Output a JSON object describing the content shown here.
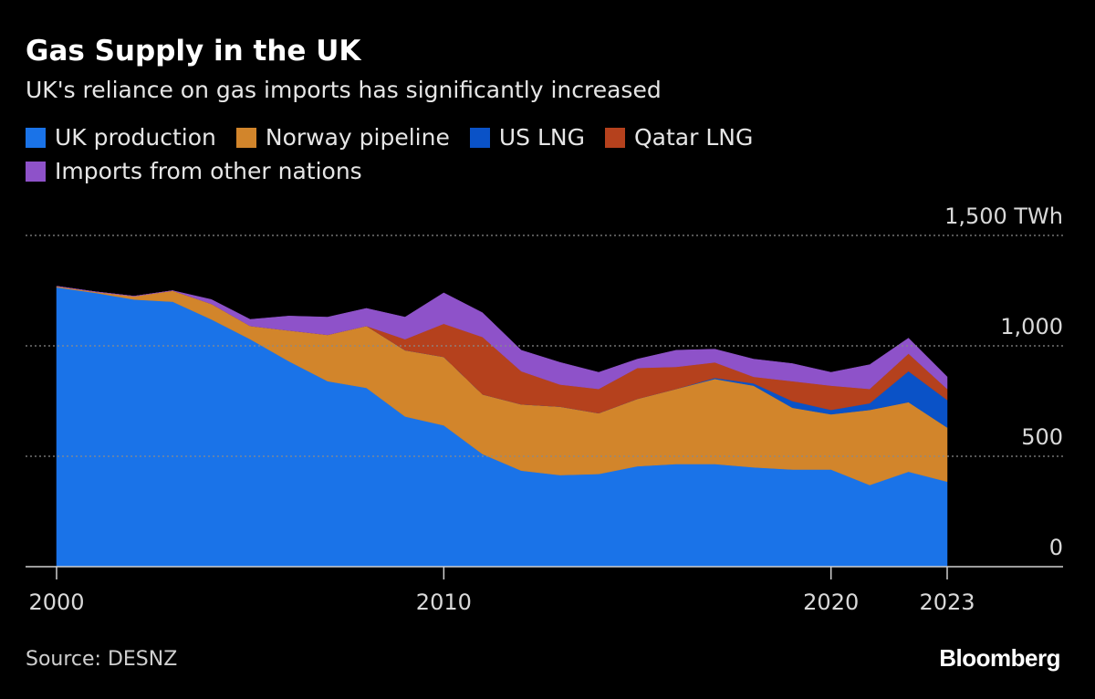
{
  "chart_data": {
    "type": "area",
    "stacked": true,
    "title": "Gas Supply in the UK",
    "subtitle": "UK's reliance on gas imports has significantly increased",
    "unit": "TWh",
    "source": "Source: DESNZ",
    "brand": "Bloomberg",
    "x": [
      2000,
      2001,
      2002,
      2003,
      2004,
      2005,
      2006,
      2007,
      2008,
      2009,
      2010,
      2011,
      2012,
      2013,
      2014,
      2015,
      2016,
      2017,
      2018,
      2019,
      2020,
      2021,
      2022,
      2023
    ],
    "x_ticks": [
      {
        "value": 2000,
        "label": "2000"
      },
      {
        "value": 2010,
        "label": "2010"
      },
      {
        "value": 2020,
        "label": "2020"
      },
      {
        "value": 2023,
        "label": "2023"
      }
    ],
    "y_ticks": [
      {
        "value": 0,
        "label": "0"
      },
      {
        "value": 500,
        "label": "500"
      },
      {
        "value": 1000,
        "label": "1,000"
      },
      {
        "value": 1500,
        "label": "1,500 TWh"
      }
    ],
    "xlim": [
      1999.2,
      2026
    ],
    "ylim": [
      0,
      1500
    ],
    "grid": true,
    "legend_position": "top-left",
    "series": [
      {
        "name": "UK production",
        "color": "#1a73e8",
        "values": [
          1265,
          1240,
          1210,
          1200,
          1120,
          1030,
          930,
          840,
          810,
          680,
          640,
          510,
          435,
          415,
          420,
          455,
          465,
          465,
          450,
          440,
          440,
          370,
          430,
          385
        ]
      },
      {
        "name": "Norway pipeline",
        "color": "#d2852b",
        "values": [
          5,
          5,
          15,
          50,
          70,
          60,
          140,
          210,
          280,
          300,
          310,
          270,
          300,
          310,
          275,
          305,
          340,
          385,
          370,
          280,
          250,
          340,
          315,
          245
        ]
      },
      {
        "name": "US LNG",
        "color": "#0a52c7",
        "values": [
          0,
          0,
          0,
          0,
          0,
          0,
          0,
          0,
          0,
          0,
          0,
          0,
          0,
          0,
          0,
          0,
          0,
          5,
          10,
          30,
          20,
          30,
          140,
          125
        ]
      },
      {
        "name": "Qatar LNG",
        "color": "#b5411d",
        "values": [
          0,
          0,
          0,
          0,
          0,
          0,
          0,
          0,
          0,
          50,
          150,
          260,
          150,
          100,
          110,
          140,
          100,
          70,
          30,
          90,
          110,
          65,
          80,
          50
        ]
      },
      {
        "name": "Imports from other nations",
        "color": "#8e52c9",
        "values": [
          0,
          0,
          0,
          0,
          20,
          30,
          65,
          80,
          80,
          100,
          140,
          110,
          95,
          100,
          75,
          40,
          75,
          60,
          80,
          80,
          60,
          110,
          70,
          55
        ]
      }
    ]
  }
}
